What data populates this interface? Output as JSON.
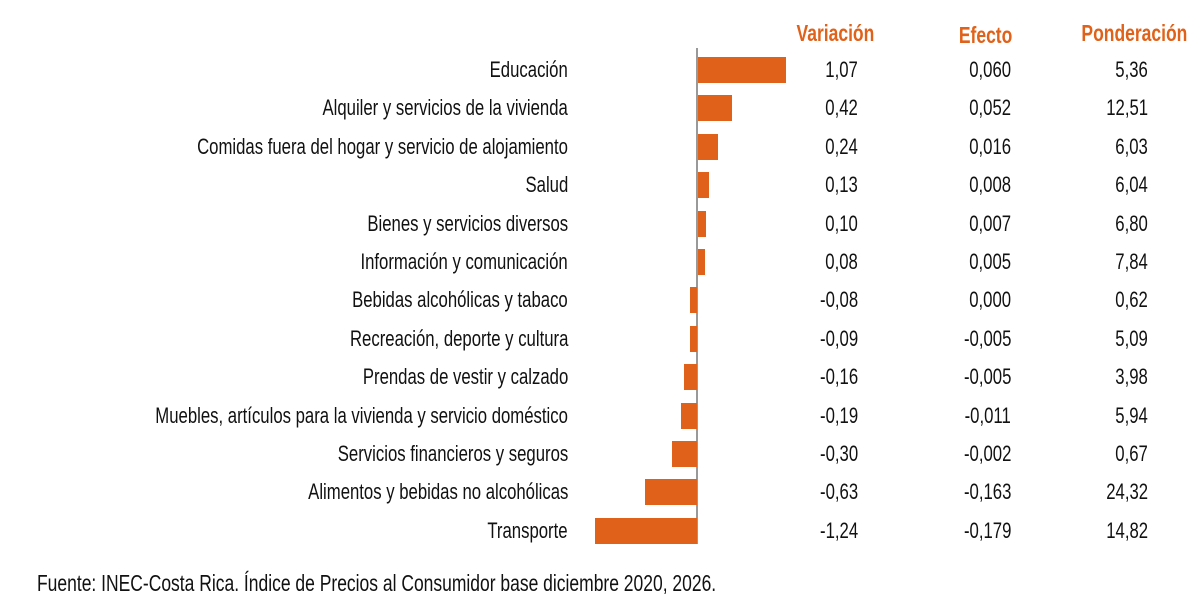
{
  "chart_data": {
    "type": "bar",
    "orientation": "horizontal",
    "categories": [
      "Educación",
      "Alquiler y servicios de la vivienda",
      "Comidas fuera del hogar y servicio de alojamiento",
      "Salud",
      "Bienes y servicios diversos",
      "Información y comunicación",
      "Bebidas alcohólicas y tabaco",
      "Recreación, deporte y cultura",
      "Prendas de vestir y calzado",
      "Muebles, artículos para la vivienda y servicio doméstico",
      "Servicios financieros y seguros",
      "Alimentos y bebidas no alcohólicas",
      "Transporte"
    ],
    "values": [
      1.07,
      0.42,
      0.24,
      0.13,
      0.1,
      0.08,
      -0.08,
      -0.09,
      -0.16,
      -0.19,
      -0.3,
      -0.63,
      -1.24
    ],
    "table": {
      "headers": [
        "Variación",
        "Efecto",
        "Ponderación"
      ],
      "variacion": [
        "1,07",
        "0,42",
        "0,24",
        "0,13",
        "0,10",
        "0,08",
        "-0,08",
        "-0,09",
        "-0,16",
        "-0,19",
        "-0,30",
        "-0,63",
        "-1,24"
      ],
      "efecto": [
        "0,060",
        "0,052",
        "0,016",
        "0,008",
        "0,007",
        "0,005",
        "0,000",
        "-0,005",
        "-0,005",
        "-0,011",
        "-0,002",
        "-0,163",
        "-0,179"
      ],
      "ponderacion": [
        "5,36",
        "12,51",
        "6,03",
        "6,04",
        "6,80",
        "7,84",
        "0,62",
        "5,09",
        "3,98",
        "5,94",
        "0,67",
        "24,32",
        "14,82"
      ]
    },
    "bar_color": "#e0621a",
    "header_color": "#e0621a",
    "grid": false
  },
  "source": "Fuente: INEC-Costa Rica. Índice de Precios al Consumidor base diciembre 2020, 2026."
}
